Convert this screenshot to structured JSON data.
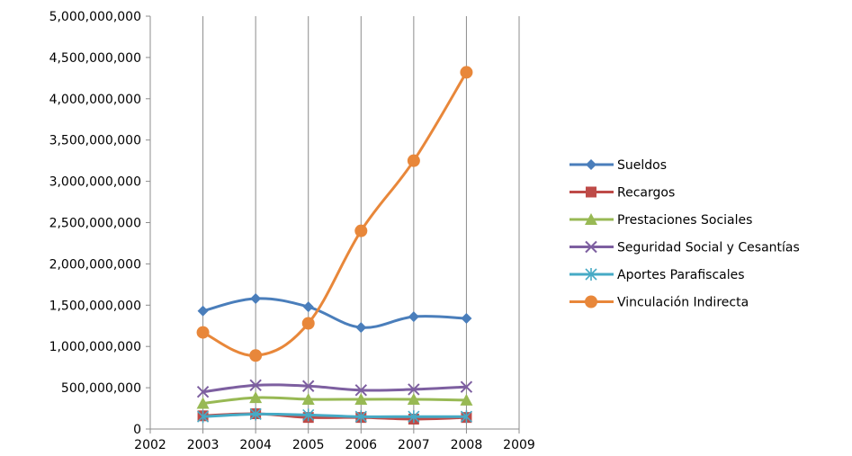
{
  "chart_data": {
    "type": "line",
    "title": "",
    "xlabel": "",
    "ylabel": "",
    "xlim": [
      2002,
      2009
    ],
    "ylim": [
      0,
      5000000000
    ],
    "x_ticks": [
      "2002",
      "2003",
      "2004",
      "2005",
      "2006",
      "2007",
      "2008",
      "2009"
    ],
    "y_ticks": [
      "0",
      "500,000,000",
      "1,000,000,000",
      "1,500,000,000",
      "2,000,000,000",
      "2,500,000,000",
      "3,000,000,000",
      "3,500,000,000",
      "4,000,000,000",
      "4,500,000,000",
      "5,000,000,000"
    ],
    "grid": "vertical",
    "legend_position": "right",
    "x": [
      2003,
      2004,
      2005,
      2006,
      2007,
      2008
    ],
    "series": [
      {
        "name": "Sueldos",
        "color": "#4a7ebb",
        "marker": "diamond",
        "values": [
          1430000000,
          1580000000,
          1480000000,
          1230000000,
          1360000000,
          1340000000
        ]
      },
      {
        "name": "Recargos",
        "color": "#be4b48",
        "marker": "square",
        "values": [
          160000000,
          185000000,
          140000000,
          140000000,
          120000000,
          140000000
        ]
      },
      {
        "name": "Prestaciones Sociales",
        "color": "#98b954",
        "marker": "triangle",
        "values": [
          310000000,
          380000000,
          360000000,
          360000000,
          360000000,
          350000000
        ]
      },
      {
        "name": "Seguridad Social y Cesantías",
        "color": "#7d5fa0",
        "marker": "x",
        "values": [
          450000000,
          530000000,
          520000000,
          470000000,
          480000000,
          510000000
        ]
      },
      {
        "name": "Aportes Parafiscales",
        "color": "#46aac5",
        "marker": "star",
        "values": [
          150000000,
          180000000,
          170000000,
          150000000,
          150000000,
          150000000
        ]
      },
      {
        "name": "Vinculación Indirecta",
        "color": "#e8873a",
        "marker": "circle",
        "values": [
          1170000000,
          890000000,
          1280000000,
          2400000000,
          3250000000,
          4320000000
        ]
      }
    ]
  }
}
